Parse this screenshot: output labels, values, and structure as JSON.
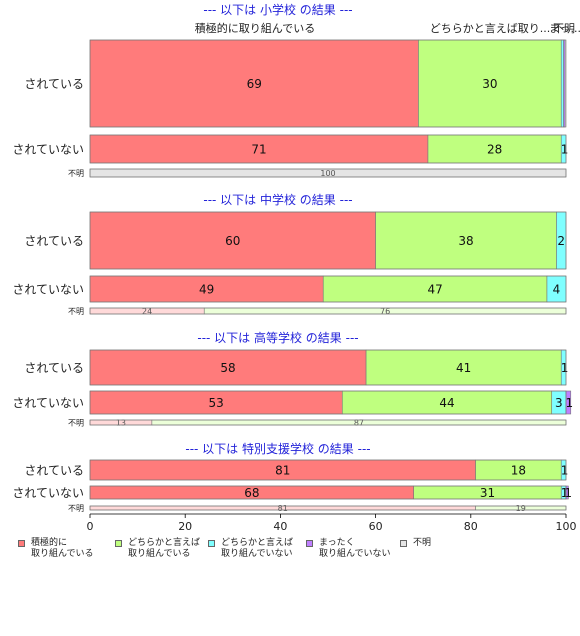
{
  "chart_data": {
    "type": "bar",
    "orientation": "horizontal",
    "stacked": true,
    "xlim": [
      0,
      100
    ],
    "x_ticks": [
      0,
      20,
      40,
      60,
      80,
      100
    ],
    "top_labels": [
      "積極的に取り組んでいる",
      "どちらかと言えば取り...",
      "まっ...",
      "不明"
    ],
    "series": [
      {
        "name": "積極的に\n取り組んでいる",
        "color": "#ff7b7b"
      },
      {
        "name": "どちらかと言えば\n取り組んでいる",
        "color": "#bfff7f"
      },
      {
        "name": "どちらかと言えば\n取り組んでいない",
        "color": "#7fffff"
      },
      {
        "name": "まったく\n取り組んでいない",
        "color": "#bf7fff"
      },
      {
        "name": "不明",
        "color": "#e5e5e5"
      }
    ],
    "panels": [
      {
        "title": "--- 以下は 小学校 の結果 ---",
        "rows": [
          {
            "label": "されている",
            "values": [
              69,
              30,
              0.5,
              0.3,
              0
            ],
            "labels": [
              "69",
              "30",
              "",
              "",
              ""
            ]
          },
          {
            "label": "されていない",
            "values": [
              71,
              28,
              1,
              0,
              0
            ],
            "labels": [
              "71",
              "28",
              "1",
              "",
              ""
            ]
          },
          {
            "label": "不明",
            "values": [
              0,
              0,
              0,
              0,
              100
            ],
            "labels": [
              "",
              "",
              "",
              "",
              "100"
            ]
          }
        ]
      },
      {
        "title": "--- 以下は 中学校 の結果 ---",
        "rows": [
          {
            "label": "されている",
            "values": [
              60,
              38,
              2,
              0,
              0
            ],
            "labels": [
              "60",
              "38",
              "2",
              "",
              ""
            ]
          },
          {
            "label": "されていない",
            "values": [
              49,
              47,
              4,
              0,
              0
            ],
            "labels": [
              "49",
              "47",
              "4",
              "",
              ""
            ]
          },
          {
            "label": "不明",
            "values": [
              24,
              76,
              0,
              0,
              0
            ],
            "labels": [
              "24",
              "76",
              "",
              "",
              ""
            ]
          }
        ]
      },
      {
        "title": "--- 以下は 高等学校 の結果 ---",
        "rows": [
          {
            "label": "されている",
            "values": [
              58,
              41,
              1,
              0,
              0
            ],
            "labels": [
              "58",
              "41",
              "1",
              "",
              ""
            ]
          },
          {
            "label": "されていない",
            "values": [
              53,
              44,
              3,
              1,
              0
            ],
            "labels": [
              "53",
              "44",
              "3",
              "1",
              ""
            ]
          },
          {
            "label": "不明",
            "values": [
              13,
              87,
              0,
              0,
              0
            ],
            "labels": [
              "13",
              "87",
              "",
              "",
              ""
            ]
          }
        ]
      },
      {
        "title": "--- 以下は 特別支援学校 の結果 ---",
        "rows": [
          {
            "label": "されている",
            "values": [
              81,
              18,
              1,
              0,
              0
            ],
            "labels": [
              "81",
              "18",
              "1",
              "",
              ""
            ]
          },
          {
            "label": "されていない",
            "values": [
              68,
              31,
              1,
              0.5,
              0
            ],
            "labels": [
              "68",
              "31",
              "1",
              "1",
              ""
            ]
          },
          {
            "label": "不明",
            "values": [
              81,
              19,
              0,
              0,
              0
            ],
            "labels": [
              "81",
              "19",
              "",
              "",
              ""
            ]
          }
        ]
      }
    ]
  }
}
